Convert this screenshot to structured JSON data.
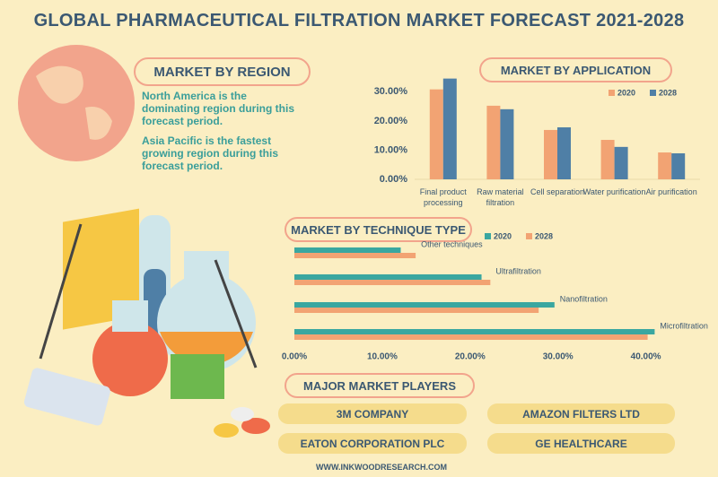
{
  "title": "GLOBAL PHARMACEUTICAL FILTRATION MARKET FORECAST 2021-2028",
  "region": {
    "heading": "MARKET BY REGION",
    "paragraphs": [
      "North America is the dominating region during this forecast period.",
      "Asia Pacific is the fastest growing region during this forecast period."
    ]
  },
  "chart_data": [
    {
      "type": "bar",
      "title": "MARKET BY APPLICATION",
      "categories": [
        "Final product processing",
        "Raw material filtration",
        "Cell separation",
        "Water purification",
        "Air purification"
      ],
      "series": [
        {
          "name": "2020",
          "color": "#f2a373",
          "values": [
            30.8,
            25.2,
            16.9,
            13.5,
            9.2
          ]
        },
        {
          "name": "2028",
          "color": "#4f7fa6",
          "values": [
            34.5,
            24.0,
            17.8,
            11.1,
            8.9
          ]
        }
      ],
      "ylim": [
        0,
        35
      ],
      "yticks": [
        {
          "value": 0,
          "label": "0.00%"
        },
        {
          "value": 10,
          "label": "10.00%"
        },
        {
          "value": 20,
          "label": "20.00%"
        },
        {
          "value": 30,
          "label": "30.00%"
        }
      ]
    },
    {
      "type": "hbar",
      "title": "MARKET BY TECHNIQUE TYPE",
      "categories": [
        "Other techniques",
        "Ultrafiltration",
        "Nanofiltration",
        "Microfiltration"
      ],
      "series": [
        {
          "name": "2020",
          "color": "#3aa7a0",
          "values": [
            12.1,
            21.3,
            29.6,
            41.0
          ]
        },
        {
          "name": "2028",
          "color": "#f2a373",
          "values": [
            13.8,
            22.3,
            27.8,
            40.2
          ]
        }
      ],
      "xlim": [
        0,
        43
      ],
      "xticks": [
        {
          "value": 0,
          "label": "0.00%"
        },
        {
          "value": 10,
          "label": "10.00%"
        },
        {
          "value": 20,
          "label": "20.00%"
        },
        {
          "value": 30,
          "label": "30.00%"
        },
        {
          "value": 40,
          "label": "40.00%"
        }
      ]
    }
  ],
  "players": {
    "heading": "MAJOR MARKET PLAYERS",
    "names": [
      "3M COMPANY",
      "AMAZON FILTERS LTD",
      "EATON CORPORATION PLC",
      "GE HEALTHCARE"
    ]
  },
  "footer": "WWW.INKWOODRESEARCH.COM"
}
